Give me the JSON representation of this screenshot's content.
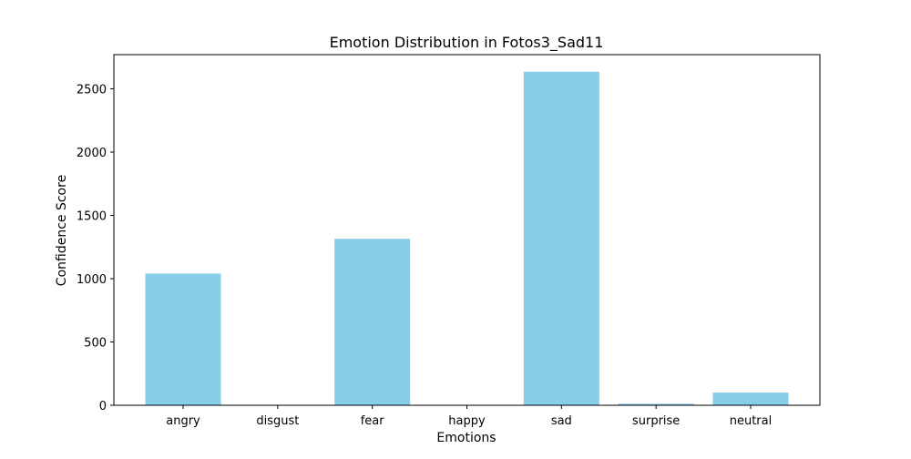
{
  "chart_data": {
    "type": "bar",
    "title": "Emotion Distribution in Fotos3_Sad11",
    "xlabel": "Emotions",
    "ylabel": "Confidence Score",
    "categories": [
      "angry",
      "disgust",
      "fear",
      "happy",
      "sad",
      "surprise",
      "neutral"
    ],
    "values": [
      1040,
      0,
      1315,
      0,
      2635,
      12,
      100
    ],
    "ylim": [
      0,
      2770
    ],
    "yticks": [
      0,
      500,
      1000,
      1500,
      2000,
      2500
    ],
    "grid": false,
    "bar_color": "#87ceeb"
  }
}
